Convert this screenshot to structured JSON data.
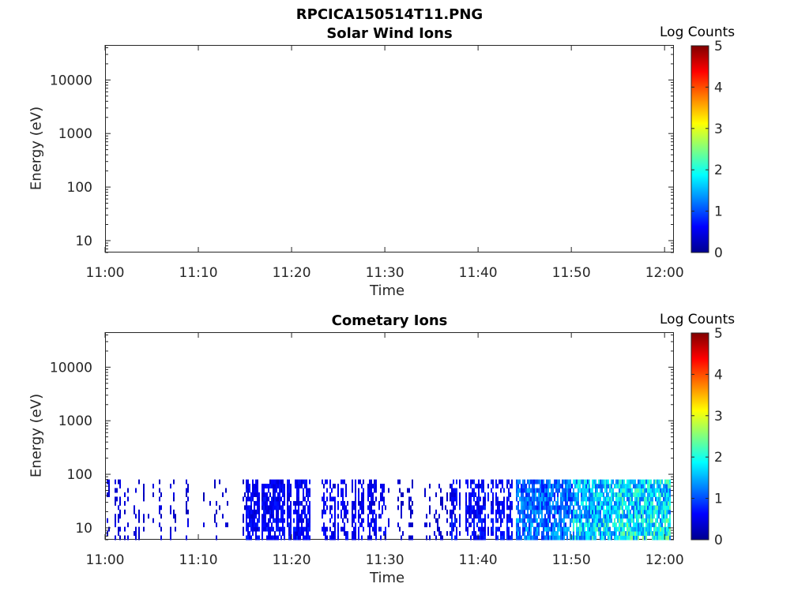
{
  "figure": {
    "title": "RPCICA150514T11.PNG"
  },
  "chart_data": [
    {
      "type": "heatmap",
      "title": "Solar Wind Ions",
      "xlabel": "Time",
      "ylabel": "Energy (eV)",
      "x_ticks": [
        "11:00",
        "11:10",
        "11:20",
        "11:30",
        "11:40",
        "11:50",
        "12:00"
      ],
      "y_ticks": [
        "10",
        "100",
        "1000",
        "10000"
      ],
      "y_scale": "log",
      "x_range": [
        "11:00",
        "12:01"
      ],
      "ylim": [
        6,
        45000
      ],
      "colorbar": {
        "label": "Log Counts",
        "ticks": [
          "0",
          "1",
          "2",
          "3",
          "4",
          "5"
        ],
        "range": [
          0,
          5
        ],
        "colormap": "jet"
      },
      "cells": []
    },
    {
      "type": "heatmap",
      "title": "Cometary Ions",
      "xlabel": "Time",
      "ylabel": "Energy (eV)",
      "x_ticks": [
        "11:00",
        "11:10",
        "11:20",
        "11:30",
        "11:40",
        "11:50",
        "12:00"
      ],
      "y_ticks": [
        "10",
        "100",
        "1000",
        "10000"
      ],
      "y_scale": "log",
      "x_range": [
        "11:00",
        "12:01"
      ],
      "ylim": [
        6,
        45000
      ],
      "colorbar": {
        "label": "Log Counts",
        "ticks": [
          "0",
          "1",
          "2",
          "3",
          "4",
          "5"
        ],
        "range": [
          0,
          5
        ],
        "colormap": "jet"
      },
      "energy_max_signal": 80,
      "activity_segments": [
        {
          "start": "11:00",
          "end": "11:09",
          "level": 0.35,
          "density": 0.35
        },
        {
          "start": "11:09",
          "end": "11:15",
          "level": 0.3,
          "density": 0.25
        },
        {
          "start": "11:15",
          "end": "11:22",
          "level": 0.55,
          "density": 0.75
        },
        {
          "start": "11:22",
          "end": "11:23",
          "level": 0.0,
          "density": 0.02
        },
        {
          "start": "11:23",
          "end": "11:30",
          "level": 0.5,
          "density": 0.6
        },
        {
          "start": "11:30",
          "end": "11:37",
          "level": 0.3,
          "density": 0.3
        },
        {
          "start": "11:37",
          "end": "11:44",
          "level": 0.6,
          "density": 0.65
        },
        {
          "start": "11:44",
          "end": "11:50",
          "level": 1.2,
          "density": 0.8
        },
        {
          "start": "11:50",
          "end": "11:55",
          "level": 1.7,
          "density": 0.85
        },
        {
          "start": "11:55",
          "end": "12:01",
          "level": 1.9,
          "density": 0.9
        }
      ]
    }
  ]
}
